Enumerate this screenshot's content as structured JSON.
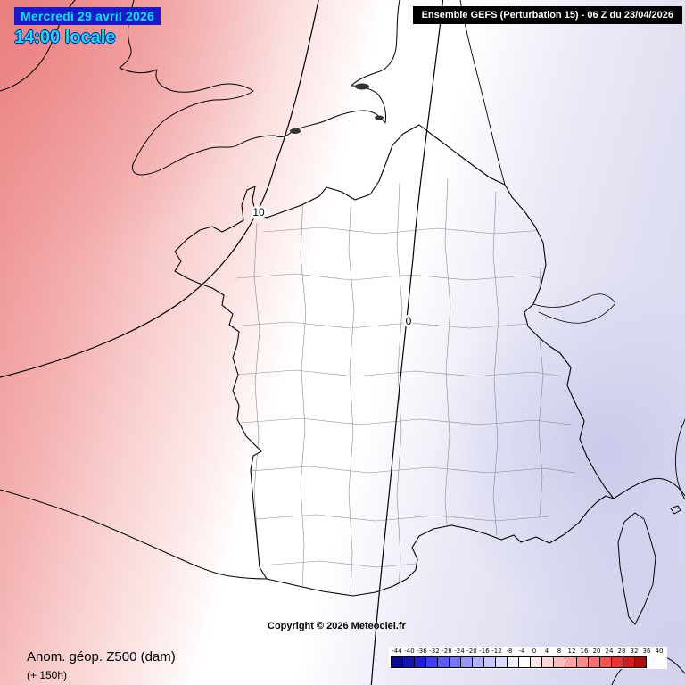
{
  "header": {
    "date": "Mercredi 29 avril 2026",
    "time": "14:00 locale",
    "model": "Ensemble GEFS  (Perturbation 15)  -  06 Z du 23/04/2026"
  },
  "map": {
    "contours": [
      {
        "label": "10"
      },
      {
        "label": "0"
      }
    ],
    "copyright": "Copyright © 2026 Meteociel.fr"
  },
  "footer": {
    "parameter": "Anom. géop. Z500 (dam)",
    "lead_time": "(+ 150h)"
  },
  "legend": {
    "unit_values": [
      -44,
      -40,
      -36,
      -32,
      -28,
      -24,
      -20,
      -16,
      -12,
      -8,
      -4,
      0,
      4,
      8,
      12,
      16,
      20,
      24,
      28,
      32,
      36,
      40
    ],
    "colors": [
      "#0b0b8f",
      "#1414b4",
      "#1e1ed7",
      "#3c3cff",
      "#5a5aff",
      "#7878ff",
      "#9696ff",
      "#b0b0ff",
      "#c8c8ff",
      "#dcdcff",
      "#efefff",
      "#ffffff",
      "#ffeaea",
      "#ffd5d5",
      "#ffbcbc",
      "#ffa3a3",
      "#ff8a8a",
      "#ff6e6e",
      "#ff5050",
      "#ee3232",
      "#d41b1b",
      "#b40a0a"
    ]
  },
  "colors": {
    "header_text": "#00e8e8",
    "header_bg": "#1a1acc",
    "banner_bg": "#000000",
    "banner_text": "#ffffff",
    "anomaly_positive_deep": "#ed8a8a",
    "anomaly_negative_deep": "#c4c4e8",
    "anomaly_neutral": "#ffffff"
  }
}
